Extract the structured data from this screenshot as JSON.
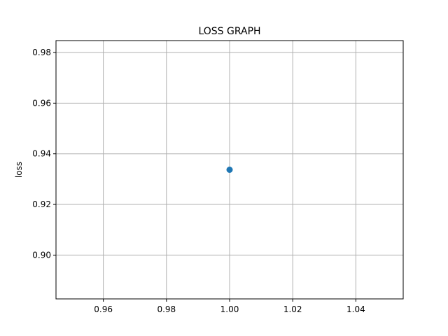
{
  "chart_data": {
    "type": "line",
    "title": "LOSS GRAPH",
    "xlabel": "",
    "ylabel": "loss",
    "xlim": [
      0.945,
      1.055
    ],
    "ylim": [
      0.8827,
      0.9847
    ],
    "xticks": [
      0.96,
      0.98,
      1.0,
      1.02,
      1.04
    ],
    "xtick_labels": [
      "0.96",
      "0.98",
      "1.00",
      "1.02",
      "1.04"
    ],
    "yticks": [
      0.9,
      0.92,
      0.94,
      0.96,
      0.98
    ],
    "ytick_labels": [
      "0.90",
      "0.92",
      "0.94",
      "0.96",
      "0.98"
    ],
    "grid": true,
    "series": [
      {
        "color": "#1f77b4",
        "x": [
          1.0
        ],
        "y": [
          0.9337
        ]
      }
    ]
  }
}
